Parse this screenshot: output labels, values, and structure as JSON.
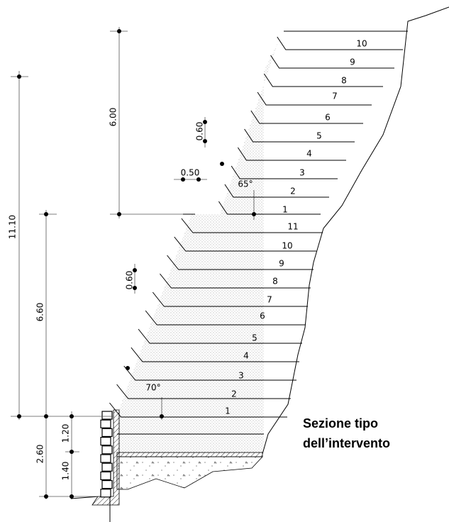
{
  "upper_layers": [
    "10",
    "9",
    "8",
    "7",
    "6",
    "5",
    "4",
    "3",
    "2",
    "1"
  ],
  "lower_layers": [
    "11",
    "10",
    "9",
    "8",
    "7",
    "6",
    "5",
    "4",
    "3",
    "2",
    "1"
  ],
  "dimensions": [
    "6.00",
    "0.60",
    "0.50",
    "11.10",
    "6.60",
    "0.60",
    "1.20",
    "2.60",
    "1.40"
  ],
  "angles": [
    "65°",
    "70°"
  ],
  "caption": {
    "line1": "Sezione tipo",
    "line2": "dell’intervento"
  }
}
